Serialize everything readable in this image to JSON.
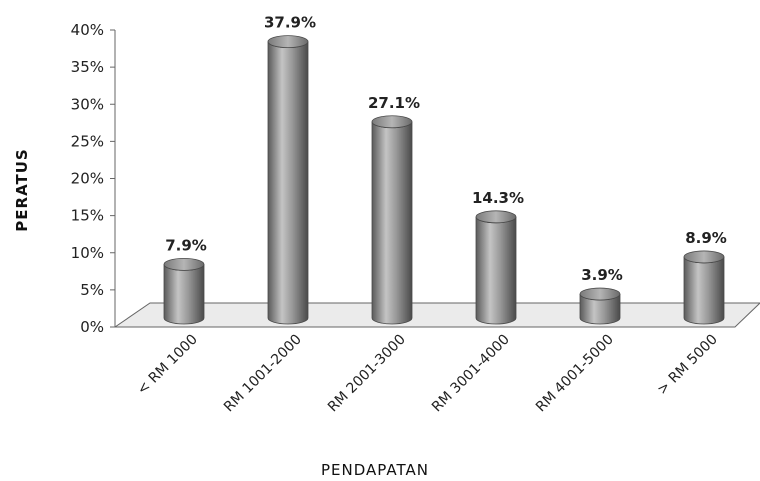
{
  "chart_data": {
    "type": "bar",
    "style": "3d-cylinder",
    "title": "",
    "xlabel": "PENDAPATAN",
    "ylabel": "PERATUS",
    "categories": [
      "< RM 1000",
      "RM 1001-2000",
      "RM 2001-3000",
      "RM 3001-4000",
      "RM 4001-5000",
      "> RM 5000"
    ],
    "values": [
      7.9,
      37.9,
      27.1,
      14.3,
      3.9,
      8.9
    ],
    "data_labels": [
      "7.9%",
      "37.9%",
      "27.1%",
      "14.3%",
      "3.9%",
      "8.9%"
    ],
    "ylim": [
      0,
      40
    ],
    "yticks": [
      "0%",
      "5%",
      "10%",
      "15%",
      "20%",
      "25%",
      "30%",
      "35%",
      "40%"
    ],
    "grid": false,
    "legend": "none",
    "colors": {
      "bar": "#8a8a8a",
      "bar_light": "#c9c9c9",
      "bar_dark": "#4e4e4e",
      "floor": "#e6e6e6",
      "axis": "#555555"
    }
  }
}
